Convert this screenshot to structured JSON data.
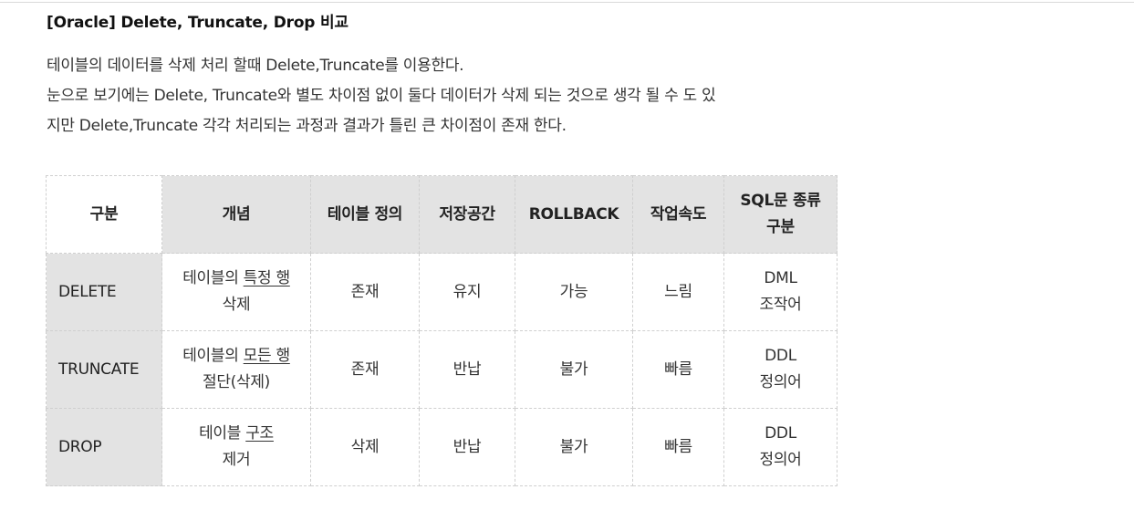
{
  "title": "[Oracle] Delete, Truncate, Drop 비교",
  "intro": [
    "테이블의 데이터를 삭제 처리 할때 Delete,Truncate를 이용한다.",
    "눈으로 보기에는 Delete, Truncate와 별도 차이점 없이 둘다 데이터가 삭제 되는 것으로 생각 될 수 도 있",
    "지만 Delete,Truncate 각각 처리되는 과정과 결과가 틀린 큰 차이점이 존재 한다."
  ],
  "table": {
    "headers": {
      "category": "구분",
      "concept": "개념",
      "table_definition": "테이블 정의",
      "storage": "저장공간",
      "rollback": "ROLLBACK",
      "speed": "작업속도",
      "sql_type_line1": "SQL문 종류",
      "sql_type_line2": "구분"
    },
    "rows": [
      {
        "name": "DELETE",
        "concept_prefix": "테이블의 ",
        "concept_underlined": "특정 행",
        "concept_line2": "삭제",
        "table_definition": "존재",
        "storage": "유지",
        "rollback": "가능",
        "speed": "느림",
        "sql_type": "DML",
        "sql_type_desc": "조작어"
      },
      {
        "name": "TRUNCATE",
        "concept_prefix": "테이블의 ",
        "concept_underlined": "모든 행",
        "concept_line2": "절단(삭제)",
        "table_definition": "존재",
        "storage": "반납",
        "rollback": "불가",
        "speed": "빠름",
        "sql_type": "DDL",
        "sql_type_desc": "정의어"
      },
      {
        "name": "DROP",
        "concept_prefix": "테이블 ",
        "concept_underlined": "구조",
        "concept_line2": "제거",
        "table_definition": "삭제",
        "storage": "반납",
        "rollback": "불가",
        "speed": "빠름",
        "sql_type": "DDL",
        "sql_type_desc": "정의어"
      }
    ]
  }
}
